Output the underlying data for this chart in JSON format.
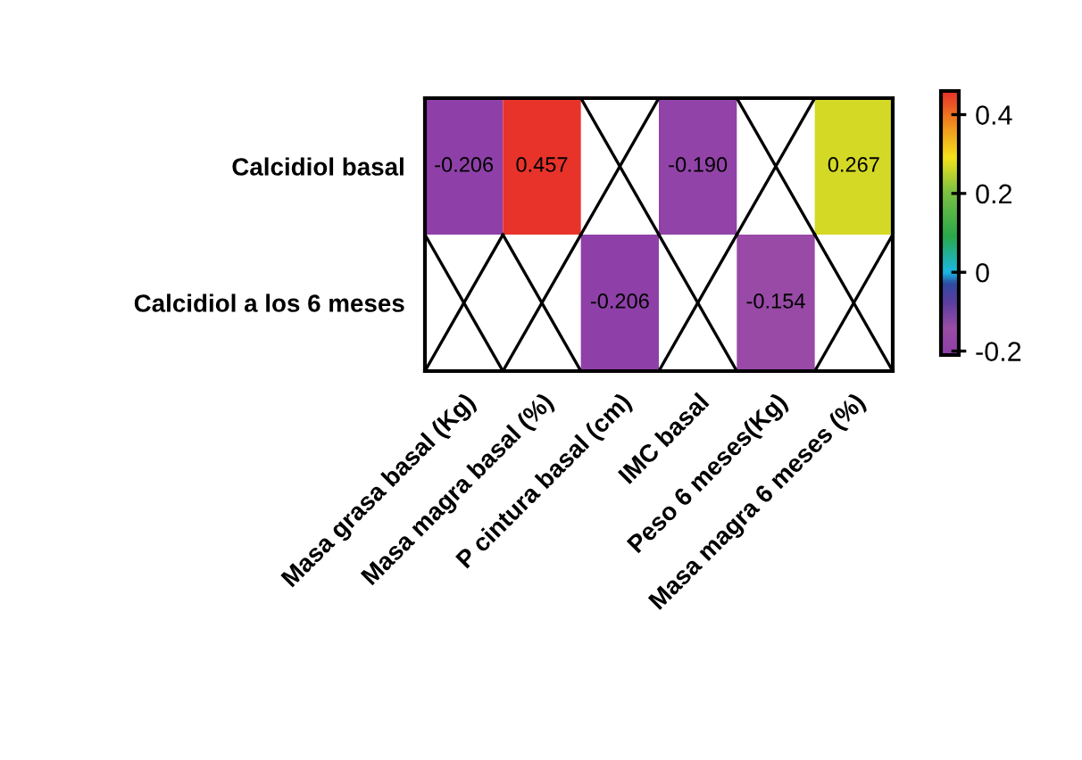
{
  "chart_data": {
    "type": "heatmap",
    "categories": [
      "Masa grasa basal (Kg)",
      "Masa magra basal (%)",
      "P cintura basal (cm)",
      "IMC basal",
      "Peso 6 meses(Kg)",
      "Masa magra 6 meses (%)"
    ],
    "y_categories": [
      "Calcidiol basal",
      "Calcidiol a los 6 meses"
    ],
    "cells": [
      [
        -0.206,
        0.457,
        null,
        -0.19,
        null,
        0.267
      ],
      [
        null,
        null,
        -0.206,
        null,
        -0.154,
        null
      ]
    ],
    "cell_labels": [
      [
        "-0.206",
        "0.457",
        null,
        "-0.190",
        null,
        "0.267"
      ],
      [
        null,
        null,
        "-0.206",
        null,
        "-0.154",
        null
      ]
    ],
    "clim": [
      -0.21,
      0.46
    ],
    "cticks": [
      {
        "value": -0.2,
        "label": "-0.2"
      },
      0,
      0.2,
      0.4
    ]
  }
}
